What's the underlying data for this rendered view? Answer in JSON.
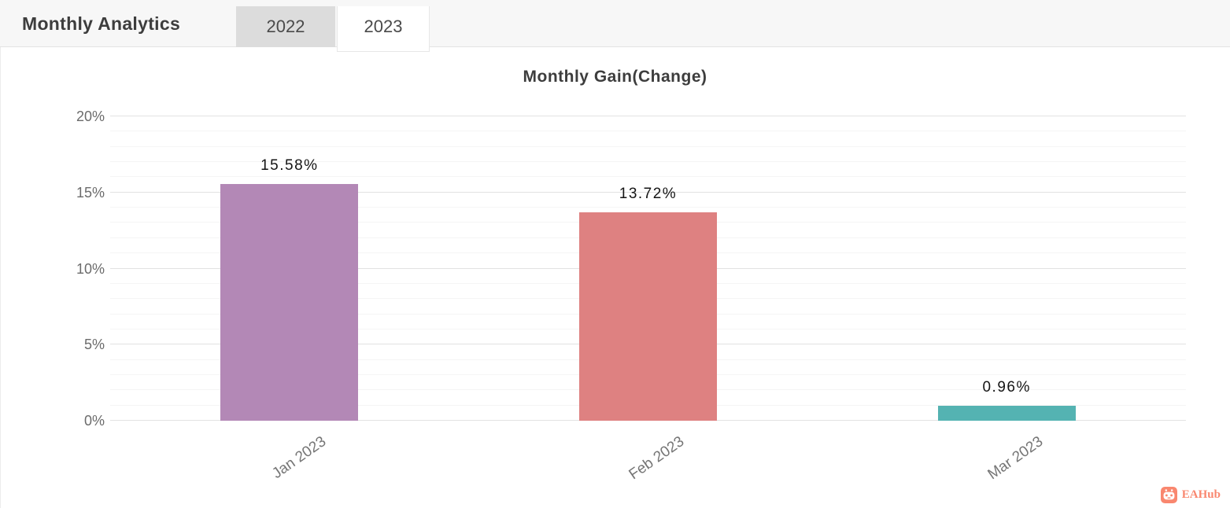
{
  "header": {
    "title": "Monthly Analytics",
    "tabs": [
      {
        "label": "2022",
        "active": false
      },
      {
        "label": "2023",
        "active": true
      }
    ]
  },
  "chart_data": {
    "type": "bar",
    "title": "Monthly Gain(Change)",
    "categories": [
      "Jan 2023",
      "Feb 2023",
      "Mar 2023"
    ],
    "values": [
      15.58,
      13.72,
      0.96
    ],
    "value_labels": [
      "15.58%",
      "13.72%",
      "0.96%"
    ],
    "bar_colors": [
      "#b388b6",
      "#de8181",
      "#54b3b2"
    ],
    "ylim": [
      0,
      20
    ],
    "yticks": [
      0,
      5,
      10,
      15,
      20
    ],
    "ytick_labels": [
      "0%",
      "5%",
      "10%",
      "15%",
      "20%"
    ],
    "minor_step": 1,
    "major_step": 5,
    "grid": true,
    "xlabel": "",
    "ylabel": ""
  },
  "footer": {
    "brand": "EAHub",
    "brand_color": "#f9876f"
  }
}
